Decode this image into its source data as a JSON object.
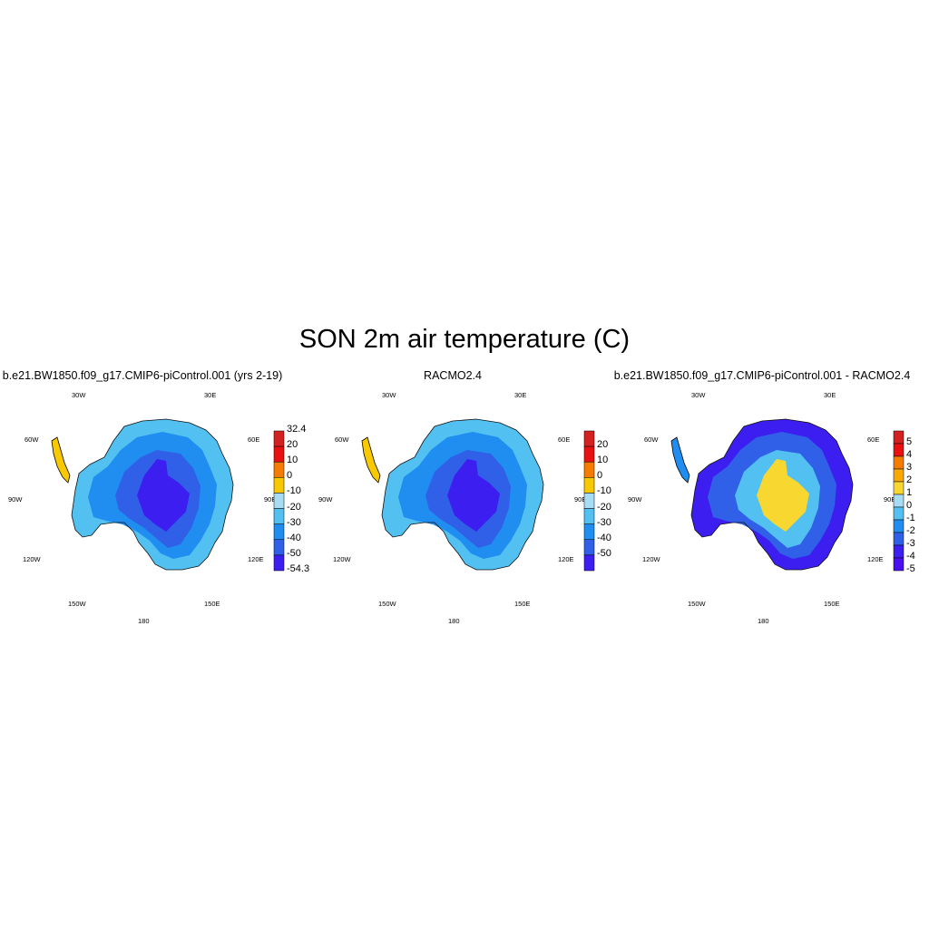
{
  "title": "SON 2m air temperature (C)",
  "longitude_labels": [
    "30W",
    "30E",
    "60W",
    "60E",
    "90W",
    "90E",
    "120W",
    "120E",
    "150W",
    "150E",
    "180"
  ],
  "panels": [
    {
      "id": "model",
      "title": "b.e21.BW1850.f09_g17.CMIP6-piControl.001 (yrs 2-19)",
      "colorbar": {
        "labels": [
          "32.4",
          "20",
          "10",
          "0",
          "-10",
          "-20",
          "-30",
          "-40",
          "-50",
          "-54.3"
        ],
        "colors": [
          "#d32020",
          "#e81010",
          "#f57c00",
          "#f8c800",
          "#a8dcf5",
          "#52c0f0",
          "#1f8ef0",
          "#3060e8",
          "#3d1ef0"
        ]
      },
      "fill_levels": {
        "edge": "#52c0f0",
        "mid": "#1f8ef0",
        "inner": "#3060e8",
        "core": "#3d1ef0",
        "peninsula": "#f8c800"
      }
    },
    {
      "id": "racmo",
      "title": "RACMO2.4",
      "colorbar": {
        "labels": [
          "20",
          "10",
          "0",
          "-10",
          "-20",
          "-30",
          "-40",
          "-50"
        ],
        "colors": [
          "#d32020",
          "#e81010",
          "#f57c00",
          "#f8c800",
          "#a8dcf5",
          "#52c0f0",
          "#1f8ef0",
          "#3060e8",
          "#3d1ef0"
        ]
      },
      "fill_levels": {
        "edge": "#52c0f0",
        "mid": "#1f8ef0",
        "inner": "#3060e8",
        "core": "#3d1ef0",
        "peninsula": "#f8c800"
      }
    },
    {
      "id": "diff",
      "title": "b.e21.BW1850.f09_g17.CMIP6-piControl.001 - RACMO2.4",
      "colorbar": {
        "labels": [
          "5",
          "4",
          "3",
          "2",
          "1",
          "0",
          "-1",
          "-2",
          "-3",
          "-4",
          "-5"
        ],
        "colors": [
          "#d32020",
          "#e81010",
          "#f57c00",
          "#f8a800",
          "#f8d830",
          "#a8dcf5",
          "#52c0f0",
          "#1f8ef0",
          "#3060e8",
          "#3d1ef0",
          "#4a10f0"
        ]
      },
      "fill_levels": {
        "edge": "#3d1ef0",
        "mid": "#3060e8",
        "inner": "#52c0f0",
        "core": "#f8d830",
        "peninsula": "#1f8ef0"
      }
    }
  ]
}
